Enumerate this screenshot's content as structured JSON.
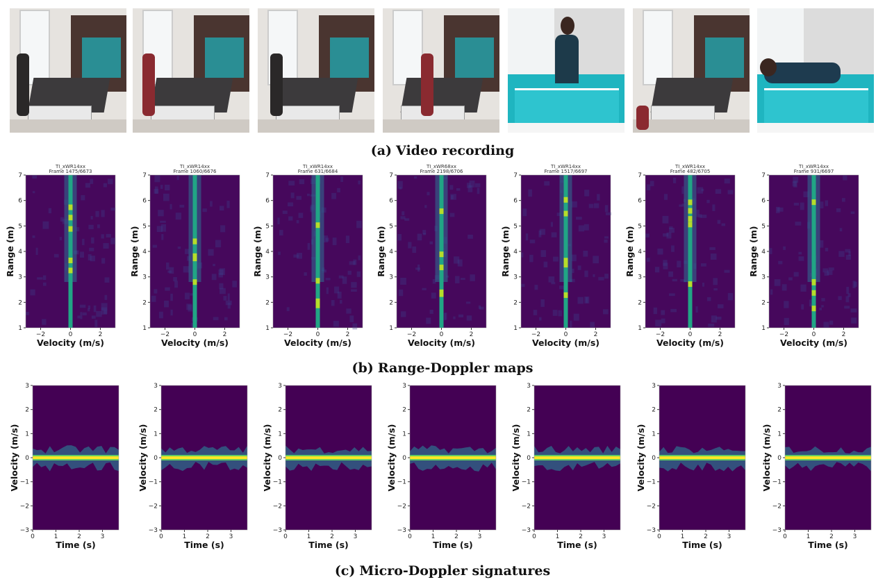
{
  "video": {
    "caption_label": "(a)",
    "caption_text": "Video recording",
    "frames": [
      {
        "scene": "room-person-walking-with-cane"
      },
      {
        "scene": "room-person-with-walker"
      },
      {
        "scene": "room-person-sitting-on-bed"
      },
      {
        "scene": "room-person-standing-near-bed"
      },
      {
        "scene": "person-sitting-on-bed-teal-blanket"
      },
      {
        "scene": "room-person-fallen-near-bed"
      },
      {
        "scene": "person-lying-on-bed-teal-blanket"
      }
    ]
  },
  "range_doppler": {
    "caption_label": "(b)",
    "caption_text": "Range-Doppler maps",
    "ylabel": "Range (m)",
    "xlabel": "Velocity (m/s)",
    "yticks": [
      "1",
      "2",
      "3",
      "4",
      "5",
      "6",
      "7"
    ],
    "xticks": [
      "−2",
      "0",
      "2"
    ],
    "ylim": [
      1,
      7
    ],
    "xlim": [
      -3,
      3
    ],
    "colormap": [
      "#440154",
      "#3b528b",
      "#21918c",
      "#5ec962",
      "#fde725"
    ],
    "plots": [
      {
        "device": "TI_xWR14xx",
        "frame": "Frame 1475/6673"
      },
      {
        "device": "TI_xWR14xx",
        "frame": "Frame 1060/6676"
      },
      {
        "device": "TI_xWR14xx",
        "frame": "Frame 631/6684"
      },
      {
        "device": "TI_xWR68xx",
        "frame": "Frame 2198/6706"
      },
      {
        "device": "TI_xWR14xx",
        "frame": "Frame 1517/6697"
      },
      {
        "device": "TI_xWR14xx",
        "frame": "Frame 482/6705"
      },
      {
        "device": "TI_xWR14xx",
        "frame": "Frame 931/6697"
      }
    ]
  },
  "micro_doppler": {
    "caption_label": "(c)",
    "caption_text": "Micro-Doppler signatures",
    "ylabel": "Velocity (m/s)",
    "xlabel": "Time (s)",
    "yticks": [
      "3",
      "2",
      "1",
      "0",
      "−1",
      "−2",
      "−3"
    ],
    "xticks": [
      "0",
      "1",
      "2",
      "3"
    ],
    "ylim": [
      -3,
      3
    ],
    "xlim": [
      0,
      3.7
    ],
    "count": 7
  }
}
